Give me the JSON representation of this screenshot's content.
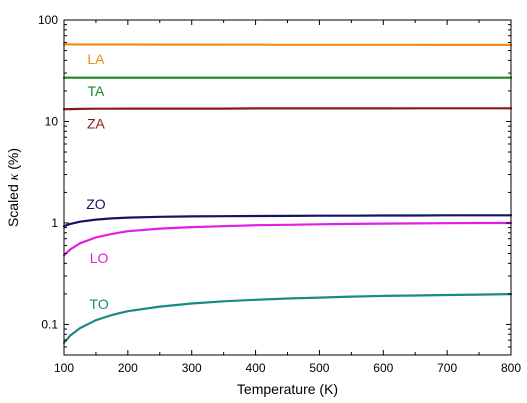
{
  "chart_data": {
    "type": "line",
    "xlabel": "Temperature (K)",
    "ylabel_prefix": "Scaled ",
    "ylabel_symbol": "κ",
    "ylabel_suffix": " (%)",
    "xlim": [
      100,
      800
    ],
    "ylim": [
      0.05,
      100
    ],
    "yscale": "log",
    "grid": false,
    "x_ticks": [
      100,
      200,
      300,
      400,
      500,
      600,
      700,
      800
    ],
    "y_ticks": [
      0.1,
      1,
      10,
      100
    ],
    "y_tick_labels": [
      "0.1",
      "1",
      "10",
      "100"
    ],
    "x": [
      100,
      110,
      125,
      150,
      175,
      200,
      250,
      300,
      350,
      400,
      450,
      500,
      550,
      600,
      650,
      700,
      750,
      800
    ],
    "series": [
      {
        "name": "LA",
        "color": "#f08c1e",
        "label_x": 150,
        "label_y": 40,
        "values": [
          57.5,
          57.5,
          57.4,
          57.4,
          57.3,
          57.3,
          57.2,
          57.2,
          57.1,
          57.1,
          57.0,
          57.0,
          57.0,
          57.0,
          57.0,
          56.9,
          56.9,
          56.9
        ]
      },
      {
        "name": "TA",
        "color": "#1a8a1a",
        "label_x": 150,
        "label_y": 19.5,
        "values": [
          27.0,
          27.0,
          27.0,
          27.0,
          27.0,
          27.0,
          27.0,
          27.0,
          27.0,
          27.0,
          27.0,
          27.0,
          27.0,
          27.0,
          27.0,
          27.0,
          27.0,
          27.0
        ]
      },
      {
        "name": "ZA",
        "color": "#8a1a1a",
        "label_x": 150,
        "label_y": 9.3,
        "values": [
          13.2,
          13.25,
          13.3,
          13.35,
          13.35,
          13.4,
          13.4,
          13.4,
          13.4,
          13.45,
          13.45,
          13.45,
          13.45,
          13.45,
          13.5,
          13.5,
          13.5,
          13.5
        ]
      },
      {
        "name": "ZO",
        "color": "#141464",
        "label_x": 150,
        "label_y": 1.5,
        "values": [
          0.93,
          0.98,
          1.03,
          1.08,
          1.11,
          1.13,
          1.15,
          1.16,
          1.165,
          1.17,
          1.175,
          1.18,
          1.18,
          1.185,
          1.185,
          1.19,
          1.19,
          1.19
        ]
      },
      {
        "name": "LO",
        "color": "#e21ee2",
        "label_x": 155,
        "label_y": 0.44,
        "values": [
          0.48,
          0.55,
          0.63,
          0.72,
          0.78,
          0.83,
          0.88,
          0.91,
          0.93,
          0.95,
          0.96,
          0.97,
          0.98,
          0.985,
          0.99,
          0.995,
          1.0,
          1.0
        ]
      },
      {
        "name": "TO",
        "color": "#1a8a82",
        "label_x": 155,
        "label_y": 0.155,
        "values": [
          0.066,
          0.078,
          0.092,
          0.11,
          0.124,
          0.135,
          0.15,
          0.161,
          0.169,
          0.175,
          0.18,
          0.184,
          0.188,
          0.191,
          0.193,
          0.195,
          0.197,
          0.199
        ]
      }
    ]
  }
}
